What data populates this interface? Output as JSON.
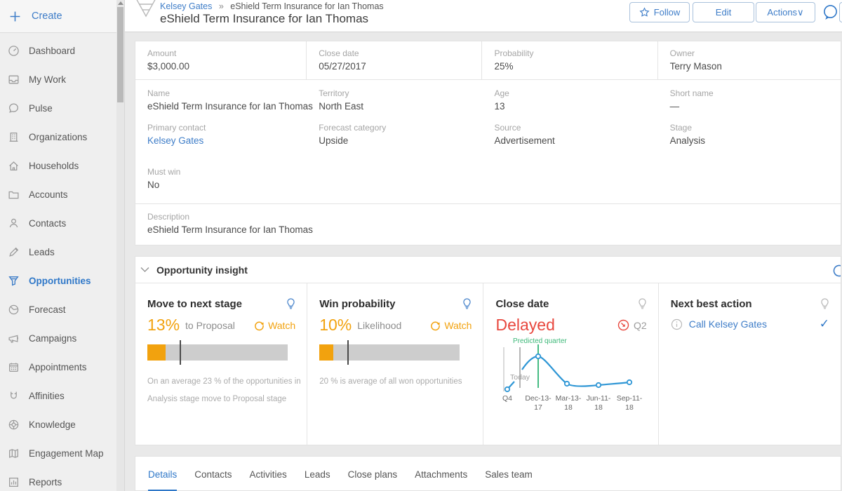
{
  "sidebar": {
    "create_label": "Create",
    "items": [
      {
        "label": "Dashboard",
        "icon": "dashboard-icon"
      },
      {
        "label": "My Work",
        "icon": "inbox-icon"
      },
      {
        "label": "Pulse",
        "icon": "chat-icon"
      },
      {
        "label": "Organizations",
        "icon": "building-icon"
      },
      {
        "label": "Households",
        "icon": "house-icon"
      },
      {
        "label": "Accounts",
        "icon": "folder-icon"
      },
      {
        "label": "Contacts",
        "icon": "person-icon"
      },
      {
        "label": "Leads",
        "icon": "pencil-icon"
      },
      {
        "label": "Opportunities",
        "icon": "funnel-icon",
        "active": true
      },
      {
        "label": "Forecast",
        "icon": "pie-icon"
      },
      {
        "label": "Campaigns",
        "icon": "megaphone-icon"
      },
      {
        "label": "Appointments",
        "icon": "calendar-icon"
      },
      {
        "label": "Affinities",
        "icon": "magnet-icon"
      },
      {
        "label": "Knowledge",
        "icon": "lifebuoy-icon"
      },
      {
        "label": "Engagement Map",
        "icon": "map-icon"
      },
      {
        "label": "Reports",
        "icon": "bar-chart-icon"
      }
    ]
  },
  "header": {
    "breadcrumb": {
      "parent": "Kelsey Gates",
      "separator": "»",
      "current": "eShield Term Insurance for Ian Thomas"
    },
    "title": "eShield Term Insurance for Ian Thomas",
    "buttons": {
      "follow": "Follow",
      "edit": "Edit",
      "actions": "Actions∨"
    }
  },
  "details": {
    "amount": {
      "label": "Amount",
      "value": "$3,000.00"
    },
    "close_date": {
      "label": "Close date",
      "value": "05/27/2017"
    },
    "probability": {
      "label": "Probability",
      "value": "25%"
    },
    "owner": {
      "label": "Owner",
      "value": "Terry Mason"
    },
    "name": {
      "label": "Name",
      "value": "eShield Term Insurance for Ian Thomas"
    },
    "territory": {
      "label": "Territory",
      "value": "North East"
    },
    "age": {
      "label": "Age",
      "value": "13"
    },
    "short_name": {
      "label": "Short name",
      "value": "—"
    },
    "primary_contact": {
      "label": "Primary contact",
      "value": "Kelsey Gates"
    },
    "forecast_category": {
      "label": "Forecast category",
      "value": "Upside"
    },
    "source": {
      "label": "Source",
      "value": "Advertisement"
    },
    "stage": {
      "label": "Stage",
      "value": "Analysis"
    },
    "must_win": {
      "label": "Must win",
      "value": "No"
    },
    "description": {
      "label": "Description",
      "value": "eShield Term Insurance for Ian Thomas"
    }
  },
  "insight": {
    "title": "Opportunity insight",
    "move_stage": {
      "title": "Move to next stage",
      "percent": "13%",
      "suffix": "to Proposal",
      "watch": "Watch",
      "bar_fill_pct": 13,
      "marker_pct": 23,
      "caption_line1": "On an average 23 % of the opportunities in",
      "caption_line2": "Analysis stage move to Proposal stage"
    },
    "win_probability": {
      "title": "Win probability",
      "percent": "10%",
      "suffix": "Likelihood",
      "watch": "Watch",
      "bar_fill_pct": 10,
      "marker_pct": 20,
      "caption_line1": "20 % is average of all won opportunities"
    },
    "close_date": {
      "title": "Close date",
      "status": "Delayed",
      "quarter": "Q2",
      "predicted_label": "Predicted quarter",
      "today_label": "Today",
      "chart": {
        "type": "line",
        "x_line1": [
          "Q4",
          "Dec-13-",
          "Mar-13-",
          "Jun-11-",
          "Sep-11-"
        ],
        "x_line2": [
          "",
          "17",
          "18",
          "18",
          "18"
        ],
        "relative_y": [
          0.03,
          1.0,
          0.17,
          0.13,
          0.22
        ],
        "annotations": [
          "Today",
          "Predicted quarter"
        ]
      }
    },
    "next_best_action": {
      "title": "Next best action",
      "action": "Call Kelsey Gates"
    }
  },
  "tabs": [
    {
      "label": "Details",
      "active": true
    },
    {
      "label": "Contacts"
    },
    {
      "label": "Activities"
    },
    {
      "label": "Leads"
    },
    {
      "label": "Close plans"
    },
    {
      "label": "Attachments"
    },
    {
      "label": "Sales team"
    }
  ],
  "colors": {
    "accent_blue": "#3e7dc8",
    "orange": "#f2a20e",
    "red": "#e8483f",
    "green": "#3cb878",
    "chart_blue": "#2e96d5"
  }
}
